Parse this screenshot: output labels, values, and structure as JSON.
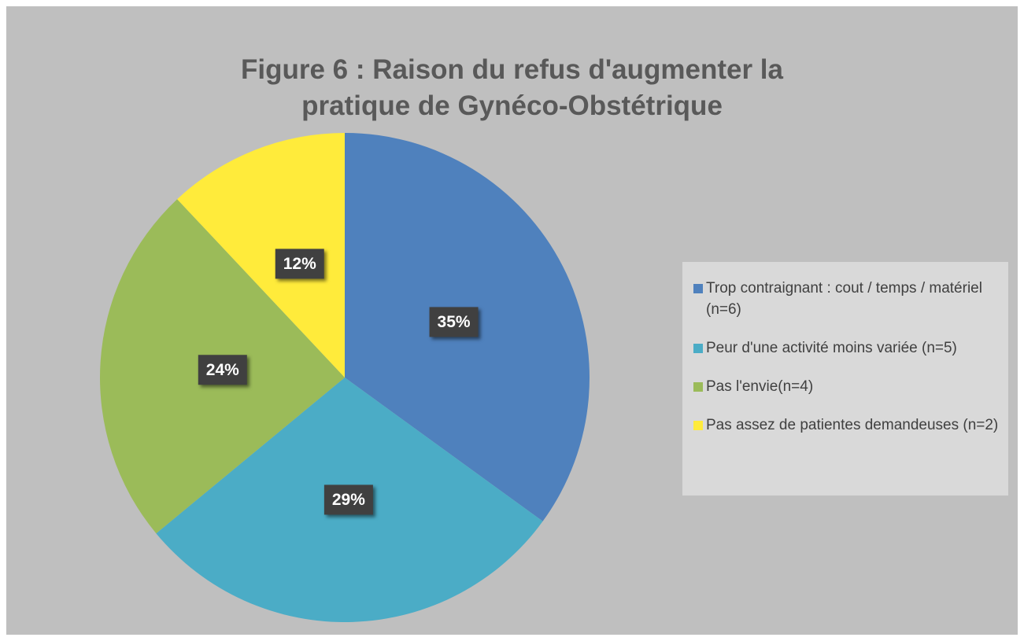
{
  "chart_data": {
    "type": "pie",
    "title": "Figure 6 : Raison du refus d'augmenter la pratique de Gynéco-Obstétrique",
    "categories": [
      "Trop contraignant : cout / temps / matériel (n=6)",
      "Peur d'une activité moins variée (n=5)",
      "Pas l'envie(n=4)",
      "Pas assez de patientes demandeuses (n=2)"
    ],
    "values": [
      35,
      29,
      24,
      12
    ],
    "value_labels": [
      "35%",
      "29%",
      "24%",
      "12%"
    ],
    "colors": [
      "#4f81bd",
      "#4bacc6",
      "#9bbb59",
      "#ffeb3b"
    ],
    "legend": "right"
  }
}
